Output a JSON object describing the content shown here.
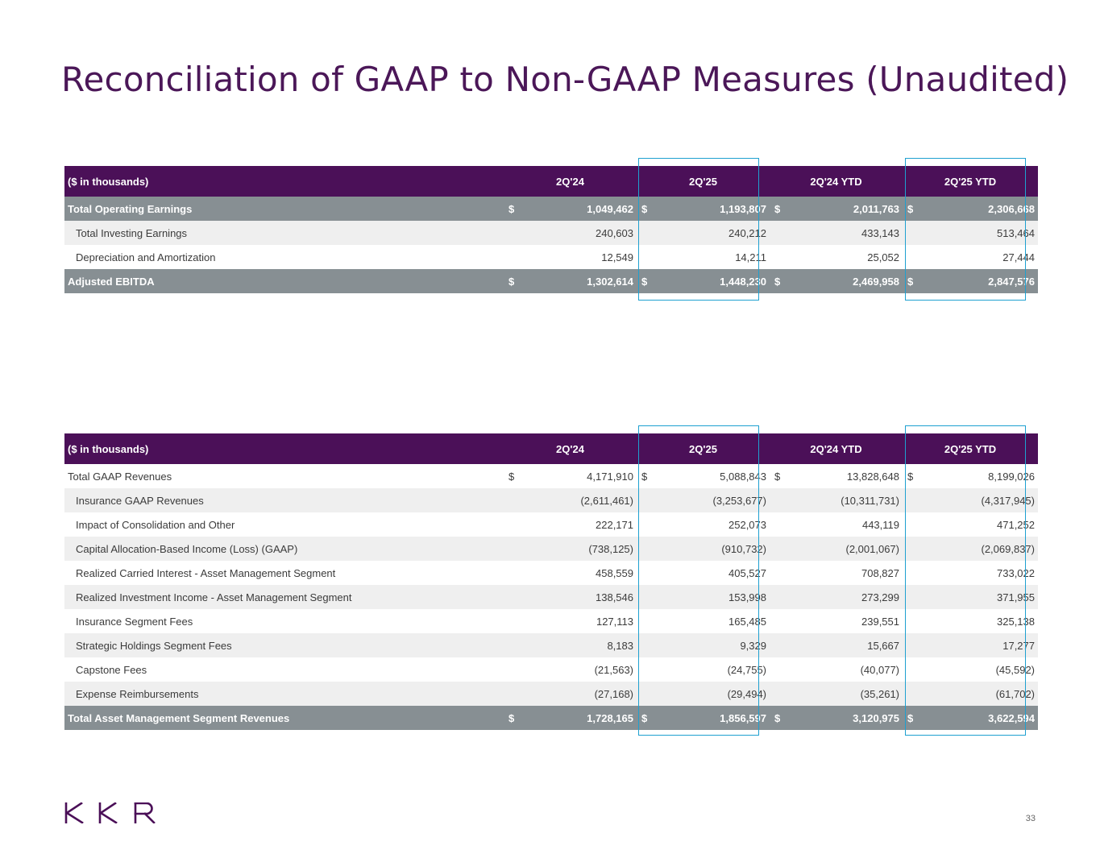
{
  "title": "Reconciliation of GAAP to Non-GAAP Measures (Unaudited)",
  "table1": {
    "headers": [
      "($ in thousands)",
      "2Q'24",
      "2Q'25",
      "2Q'24 YTD",
      "2Q'25 YTD"
    ],
    "rows": [
      {
        "label": "Total Operating Earnings",
        "cur": "$",
        "v": [
          "1,049,462",
          "1,193,807",
          "2,011,763",
          "2,306,668"
        ]
      },
      {
        "label": "Total Investing Earnings",
        "v": [
          "240,603",
          "240,212",
          "433,143",
          "513,464"
        ]
      },
      {
        "label": "Depreciation and Amortization",
        "v": [
          "12,549",
          "14,211",
          "25,052",
          "27,444"
        ]
      },
      {
        "label": "Adjusted EBITDA",
        "cur": "$",
        "v": [
          "1,302,614",
          "1,448,230",
          "2,469,958",
          "2,847,576"
        ]
      }
    ]
  },
  "table2": {
    "headers": [
      "($ in thousands)",
      "2Q'24",
      "2Q'25",
      "2Q'24 YTD",
      "2Q'25 YTD"
    ],
    "rows": [
      {
        "label": "Total GAAP Revenues",
        "cur": "$",
        "v": [
          "4,171,910",
          "5,088,843",
          "13,828,648",
          "8,199,026"
        ]
      },
      {
        "label": "Insurance GAAP Revenues",
        "v": [
          "(2,611,461)",
          "(3,253,677)",
          "(10,311,731)",
          "(4,317,945)"
        ]
      },
      {
        "label": "Impact of Consolidation and Other",
        "v": [
          "222,171",
          "252,073",
          "443,119",
          "471,252"
        ]
      },
      {
        "label": "Capital Allocation-Based Income (Loss) (GAAP)",
        "v": [
          "(738,125)",
          "(910,732)",
          "(2,001,067)",
          "(2,069,837)"
        ]
      },
      {
        "label": "Realized Carried Interest - Asset Management Segment",
        "v": [
          "458,559",
          "405,527",
          "708,827",
          "733,022"
        ]
      },
      {
        "label": "Realized Investment Income - Asset Management Segment",
        "v": [
          "138,546",
          "153,998",
          "273,299",
          "371,955"
        ]
      },
      {
        "label": "Insurance Segment Fees",
        "v": [
          "127,113",
          "165,485",
          "239,551",
          "325,138"
        ]
      },
      {
        "label": "Strategic Holdings Segment Fees",
        "v": [
          "8,183",
          "9,329",
          "15,667",
          "17,277"
        ]
      },
      {
        "label": "Capstone Fees",
        "v": [
          "(21,563)",
          "(24,755)",
          "(40,077)",
          "(45,592)"
        ]
      },
      {
        "label": "Expense Reimbursements",
        "v": [
          "(27,168)",
          "(29,494)",
          "(35,261)",
          "(61,702)"
        ]
      },
      {
        "label": "Total Asset Management Segment Revenues",
        "cur": "$",
        "v": [
          "1,728,165",
          "1,856,597",
          "3,120,975",
          "3,622,594"
        ]
      }
    ]
  },
  "logo_text": "KKR",
  "page_number": "33",
  "colors": {
    "header": "#4b1058",
    "total_row": "#878f93",
    "highlight": "#1ea0d0",
    "title": "#4b1758"
  }
}
